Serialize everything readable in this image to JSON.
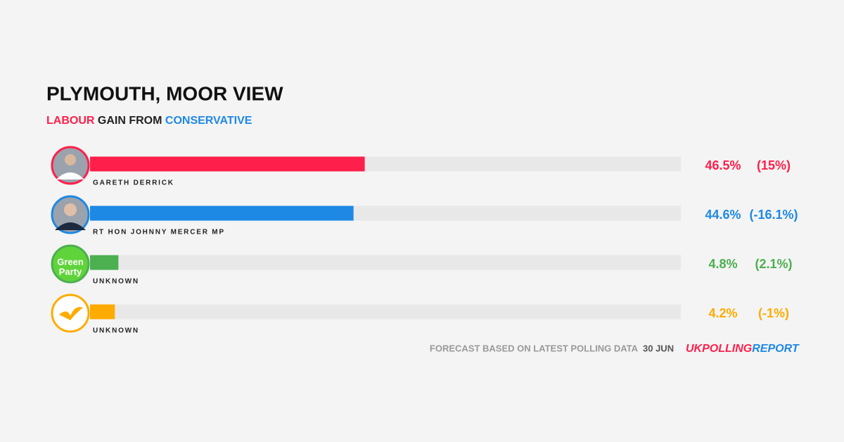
{
  "chart_data": {
    "type": "bar",
    "title": "PLYMOUTH, MOOR VIEW",
    "subtitle": {
      "winner": "LABOUR",
      "middle": "GAIN FROM",
      "loser": "CONSERVATIVE"
    },
    "categories": [
      "GARETH DERRICK",
      "RT HON JOHNNY MERCER MP",
      "UNKNOWN",
      "UNKNOWN"
    ],
    "values": [
      46.5,
      44.6,
      4.8,
      4.2
    ],
    "value_labels": [
      "46.5%",
      "44.6%",
      "4.8%",
      "4.2%"
    ],
    "changes": [
      15,
      -16.1,
      2.1,
      -1
    ],
    "change_labels": [
      "(15%)",
      "(-16.1%)",
      "(2.1%)",
      "(-1%)"
    ],
    "colors": [
      "#ff1f4b",
      "#1e88e5",
      "#4caf50",
      "#ffab00"
    ],
    "xlim": [
      0,
      100
    ],
    "green_logo": [
      "Green",
      "Party"
    ],
    "footer": {
      "note": "FORECAST BASED ON LATEST POLLING DATA",
      "date": "30 JUN",
      "brand": [
        "UK",
        "POLLING",
        "REPORT"
      ]
    }
  }
}
